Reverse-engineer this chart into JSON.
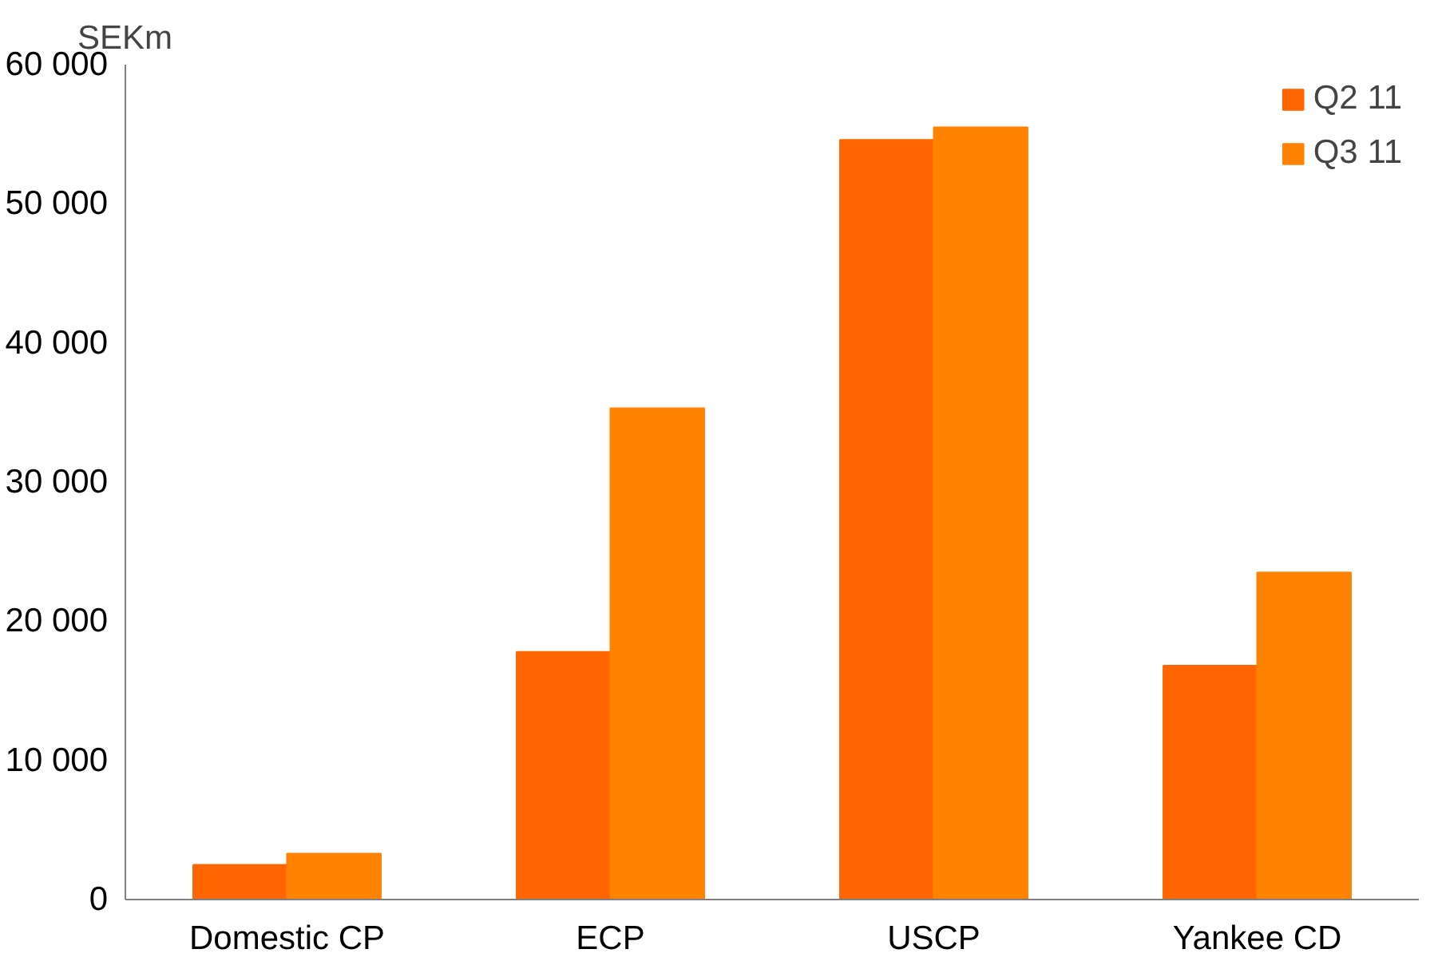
{
  "chart_data": {
    "type": "bar",
    "ylabel": "SEKm",
    "categories": [
      "Domestic CP",
      "ECP",
      "USCP",
      "Yankee CD"
    ],
    "series": [
      {
        "name": "Q2 11",
        "color": "#ff6600",
        "values": [
          2500,
          17800,
          54600,
          16800
        ]
      },
      {
        "name": "Q3 11",
        "color": "#ff8200",
        "values": [
          3300,
          35300,
          55500,
          23500
        ]
      }
    ],
    "ylim": [
      0,
      60000
    ],
    "yticks": [
      {
        "value": 0,
        "label": "0"
      },
      {
        "value": 10000,
        "label": "10 000"
      },
      {
        "value": 20000,
        "label": "20 000"
      },
      {
        "value": 30000,
        "label": "30 000"
      },
      {
        "value": 40000,
        "label": "40 000"
      },
      {
        "value": 50000,
        "label": "50 000"
      },
      {
        "value": 60000,
        "label": "60 000"
      }
    ],
    "grid": false,
    "legend": "top right"
  }
}
